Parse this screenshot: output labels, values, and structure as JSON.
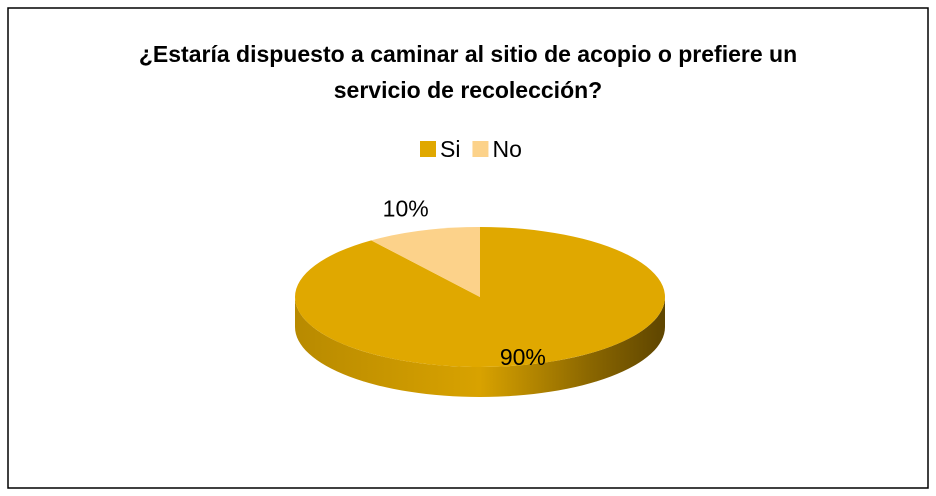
{
  "chart_data": {
    "type": "pie",
    "title": "¿Estaría dispuesto a caminar al sitio de acopio o prefiere un servicio de recolección?",
    "categories": [
      "Si",
      "No"
    ],
    "values": [
      90,
      10
    ],
    "value_labels": [
      "90%",
      "10%"
    ],
    "colors": [
      "#e0a800",
      "#fcd28a"
    ],
    "legend": "top"
  }
}
